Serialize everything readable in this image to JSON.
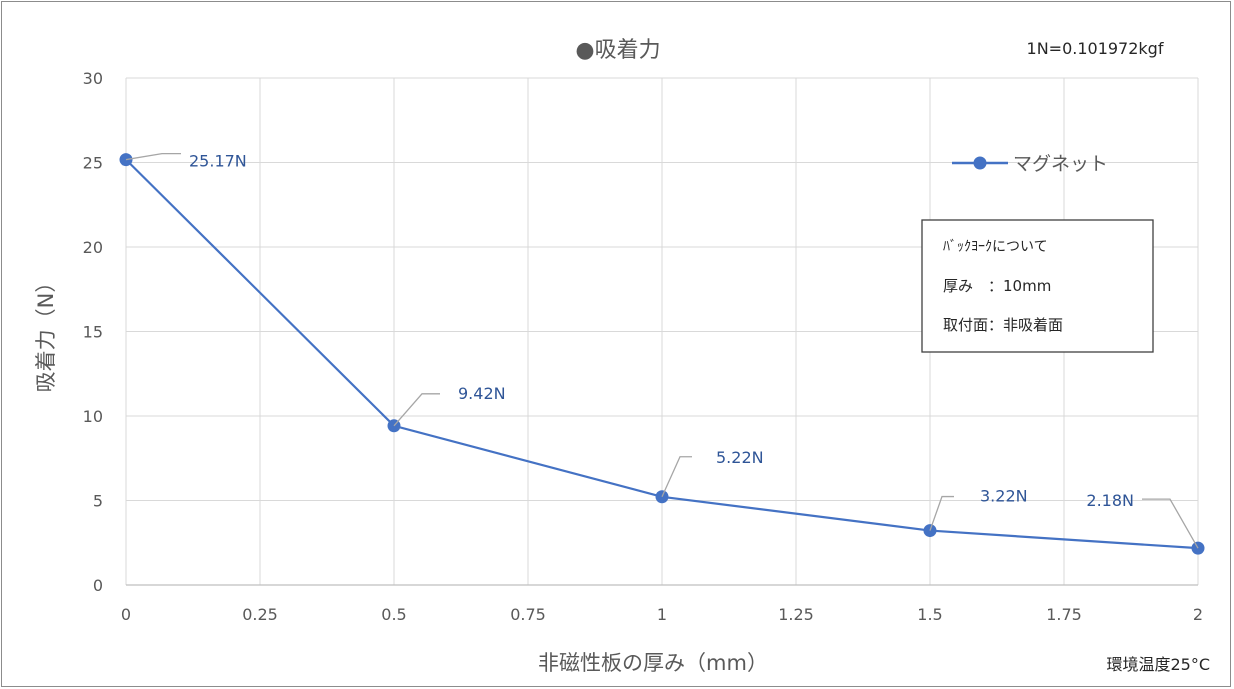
{
  "chart_data": {
    "type": "line",
    "title": "●吸着力",
    "conversion_note": "1N=0.101972kgf",
    "xlabel": "非磁性板の厚み（mm）",
    "ylabel": "吸着力（N）",
    "footer_note": "環境温度25°C",
    "xlim": [
      0,
      2
    ],
    "ylim": [
      0,
      30
    ],
    "x_ticks": [
      "0",
      "0.25",
      "0.5",
      "0.75",
      "1",
      "1.25",
      "1.5",
      "1.75",
      "2"
    ],
    "y_ticks": [
      "0",
      "5",
      "10",
      "15",
      "20",
      "25",
      "30"
    ],
    "grid": true,
    "legend_position": "top-right",
    "series": [
      {
        "name": "マグネット",
        "color": "#4472c4",
        "x": [
          0,
          0.5,
          1,
          1.5,
          2
        ],
        "y": [
          25.17,
          9.42,
          5.22,
          3.22,
          2.18
        ],
        "labels": [
          "25.17N",
          "9.42N",
          "5.22N",
          "3.22N",
          "2.18N"
        ]
      }
    ],
    "info_box": {
      "line1": "ﾊﾞｯｸﾖｰｸについて",
      "line2": "厚み　：10mm",
      "line3": "取付面：非吸着面"
    }
  }
}
